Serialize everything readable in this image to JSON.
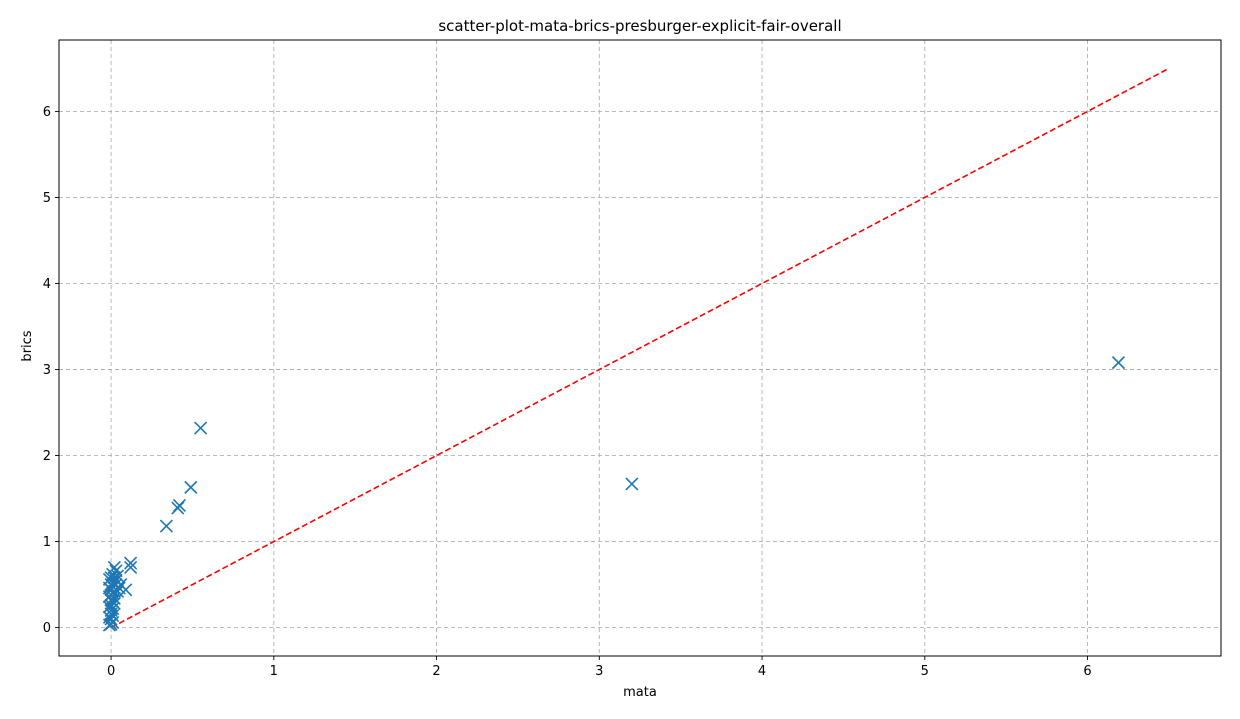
{
  "chart_data": {
    "type": "scatter",
    "title": "scatter-plot-mata-brics-presburger-explicit-fair-overall",
    "xlabel": "mata",
    "ylabel": "brics",
    "xlim": [
      -0.32,
      6.82
    ],
    "ylim": [
      -0.33,
      6.83
    ],
    "xticks": [
      0,
      1,
      2,
      3,
      4,
      5,
      6
    ],
    "yticks": [
      0,
      1,
      2,
      3,
      4,
      5,
      6
    ],
    "grid": true,
    "marker": "x",
    "colors": {
      "points": "#1f77b4",
      "reference_line": "#ff0000"
    },
    "reference_line": {
      "style": "dashed",
      "x": [
        0,
        6.5
      ],
      "y": [
        0,
        6.5
      ]
    },
    "series": [
      {
        "values": [
          {
            "x": 6.19,
            "y": 3.08
          },
          {
            "x": 3.2,
            "y": 1.67
          },
          {
            "x": 0.55,
            "y": 2.32
          },
          {
            "x": 0.49,
            "y": 1.63
          },
          {
            "x": 0.42,
            "y": 1.42
          },
          {
            "x": 0.41,
            "y": 1.39
          },
          {
            "x": 0.34,
            "y": 1.18
          },
          {
            "x": 0.12,
            "y": 0.75
          },
          {
            "x": 0.12,
            "y": 0.7
          },
          {
            "x": 0.09,
            "y": 0.44
          },
          {
            "x": 0.06,
            "y": 0.5
          },
          {
            "x": 0.05,
            "y": 0.46
          },
          {
            "x": 0.04,
            "y": 0.6
          },
          {
            "x": 0.03,
            "y": 0.66
          },
          {
            "x": 0.03,
            "y": 0.55
          },
          {
            "x": 0.02,
            "y": 0.7
          },
          {
            "x": 0.02,
            "y": 0.42
          },
          {
            "x": 0.02,
            "y": 0.34
          },
          {
            "x": 0.02,
            "y": 0.28
          },
          {
            "x": 0.01,
            "y": 0.62
          },
          {
            "x": 0.01,
            "y": 0.52
          },
          {
            "x": 0.01,
            "y": 0.48
          },
          {
            "x": 0.01,
            "y": 0.4
          },
          {
            "x": 0.01,
            "y": 0.3
          },
          {
            "x": 0.01,
            "y": 0.22
          },
          {
            "x": 0.01,
            "y": 0.14
          },
          {
            "x": 0.01,
            "y": 0.06
          },
          {
            "x": 0.0,
            "y": 0.58
          },
          {
            "x": 0.0,
            "y": 0.5
          },
          {
            "x": 0.0,
            "y": 0.44
          },
          {
            "x": 0.0,
            "y": 0.38
          },
          {
            "x": 0.0,
            "y": 0.32
          },
          {
            "x": 0.0,
            "y": 0.26
          },
          {
            "x": 0.0,
            "y": 0.2
          },
          {
            "x": 0.0,
            "y": 0.16
          },
          {
            "x": 0.0,
            "y": 0.1
          },
          {
            "x": 0.0,
            "y": 0.04
          },
          {
            "x": -0.01,
            "y": 0.56
          },
          {
            "x": -0.01,
            "y": 0.46
          },
          {
            "x": -0.01,
            "y": 0.36
          },
          {
            "x": -0.01,
            "y": 0.24
          },
          {
            "x": -0.01,
            "y": 0.12
          },
          {
            "x": -0.01,
            "y": 0.03
          },
          {
            "x": 0.03,
            "y": 0.5
          },
          {
            "x": 0.04,
            "y": 0.42
          },
          {
            "x": 0.02,
            "y": 0.58
          }
        ]
      }
    ]
  }
}
